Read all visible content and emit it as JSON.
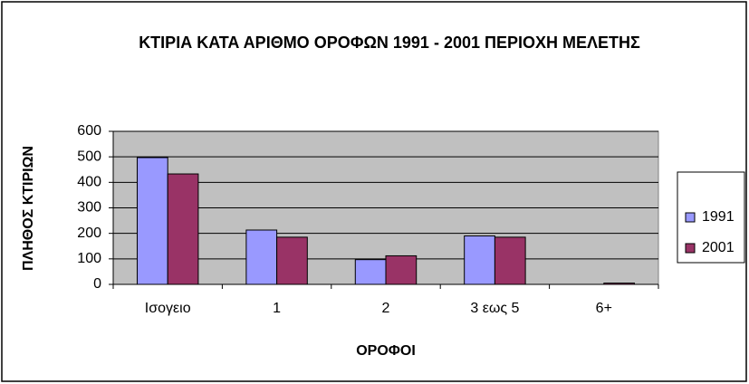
{
  "chart_data": {
    "type": "bar",
    "title": "ΚΤΙΡΙΑ ΚΑΤΑ ΑΡΙΘΜΟ ΟΡΟΦΩΝ 1991 - 2001 ΠΕΡΙΟΧΗ ΜΕΛΕΤΗΣ",
    "x_label": "ΟΡΟΦΟΙ",
    "y_label": "ΠΛΗΘΟΣ ΚΤΙΡΙΩΝ",
    "categories": [
      "Ισογειο",
      "1",
      "2",
      "3 εως 5",
      "6+"
    ],
    "series": [
      {
        "name": "1991",
        "color": "#9999ff",
        "values": [
          497,
          213,
          97,
          190,
          0
        ]
      },
      {
        "name": "2001",
        "color": "#993366",
        "values": [
          433,
          185,
          112,
          185,
          5
        ]
      }
    ],
    "ylim": [
      0,
      600
    ],
    "yticks": [
      0,
      100,
      200,
      300,
      400,
      500,
      600
    ],
    "grid": true,
    "legend": "right"
  }
}
